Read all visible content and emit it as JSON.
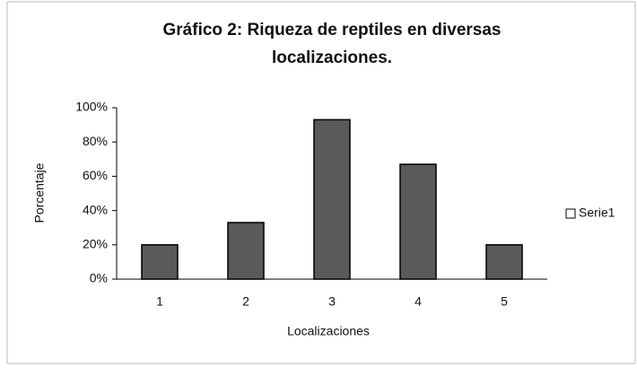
{
  "chart_data": {
    "type": "bar",
    "title": "Gráfico 2: Riqueza de reptiles en diversas localizaciones.",
    "x_label": "Localizaciones",
    "y_label": "Porcentaje",
    "categories": [
      "1",
      "2",
      "3",
      "4",
      "5"
    ],
    "series": [
      {
        "name": "Serie1",
        "color": "#5a5a5a",
        "values": [
          20,
          33,
          93,
          67,
          20
        ]
      }
    ],
    "ylim": [
      0,
      100
    ],
    "yticks": [
      {
        "value": 0,
        "label": "0%"
      },
      {
        "value": 20,
        "label": "20%"
      },
      {
        "value": 40,
        "label": "40%"
      },
      {
        "value": 60,
        "label": "60%"
      },
      {
        "value": 80,
        "label": "80%"
      },
      {
        "value": 100,
        "label": "100%"
      }
    ],
    "grid": false,
    "legend": "right"
  }
}
